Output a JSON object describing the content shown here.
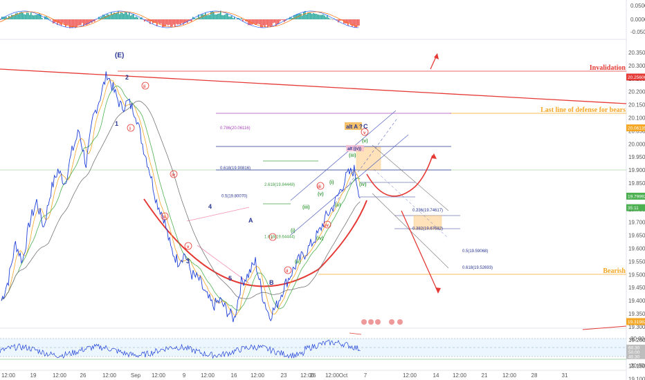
{
  "chart_data": {
    "type": "line",
    "price_axis_labels": [
      "20.35000",
      "20.30000",
      "20.25000",
      "20.20000",
      "20.15000",
      "20.10000",
      "20.05000",
      "20.00000",
      "19.95000",
      "19.90000",
      "19.85000",
      "19.80000",
      "19.75000",
      "19.70000",
      "19.65000",
      "19.60000",
      "19.55000",
      "19.50000",
      "19.45000",
      "19.40000",
      "19.35000",
      "19.30000",
      "19.25000",
      "19.20000",
      "19.15000",
      "19.10000"
    ],
    "macd_axis_labels": [
      "0.05000",
      "0.00000",
      "-0.05000"
    ],
    "rsi_axis_labels": [
      "80.00",
      "60.00",
      "50.00",
      "40.00",
      "20.00"
    ],
    "time_labels": [
      "12:00",
      "19",
      "12:00",
      "26",
      "12:00",
      "Sep",
      "12:00",
      "9",
      "12:00",
      "16",
      "12:00",
      "23",
      "12:00",
      "26",
      "12:00",
      "Oct",
      "7",
      "12:00",
      "14",
      "12:00",
      "21",
      "12:00",
      "28",
      "31"
    ],
    "price_tags": [
      {
        "text": "20.25606",
        "value": 20.25606,
        "color": "#e53935"
      },
      {
        "text": "20.06135",
        "value": 20.06135,
        "color": "#f5a623"
      },
      {
        "text": "19.79992",
        "value": 19.79992,
        "color": "#4caf50"
      },
      {
        "text": "35:11",
        "value": 19.777,
        "color": "#4caf50"
      },
      {
        "text": "19.31982",
        "value": 19.31982,
        "color": "#f5a623"
      }
    ],
    "rsi_tags": [
      {
        "text": "60.30",
        "value": 60.3,
        "color": "#bdbdbd"
      },
      {
        "text": "50.00",
        "value": 50,
        "color": "#bdbdbd"
      },
      {
        "text": "40.30",
        "value": 40.3,
        "color": "#bdbdbd"
      }
    ],
    "horizontal_lines": [
      {
        "label": "Invalidation",
        "value": 20.25606,
        "color": "#e53935"
      },
      {
        "label": "Last line of defense for bears",
        "value": 20.06135,
        "color": "#f5a623"
      },
      {
        "label": "Bearish",
        "value": 19.31982,
        "color": "#f5a623"
      }
    ],
    "fib_levels": [
      {
        "text": "0.786(20.06116)",
        "value": 20.06116,
        "color": "#ab47bc"
      },
      {
        "text": "0.618(19.90816)",
        "value": 19.90816,
        "color": "#283593"
      },
      {
        "text": "2.618(19.84448)",
        "value": 19.84448,
        "color": "#43a047"
      },
      {
        "text": "0.5(19.80070)",
        "value": 19.8007,
        "color": "#283593"
      },
      {
        "text": "1.618(19.64444)",
        "value": 19.64444,
        "color": "#43a047"
      },
      {
        "text": "0.236(19.74617)",
        "value": 19.74617,
        "color": "#283593"
      },
      {
        "text": "0.382(19.67682)",
        "value": 19.67682,
        "color": "#283593"
      },
      {
        "text": "0.5(19.59068)",
        "value": 19.59068,
        "color": "#283593"
      },
      {
        "text": "0.618(19.52693)",
        "value": 19.52693,
        "color": "#283593"
      }
    ],
    "wave_labels": [
      "(E)",
      "2",
      "1",
      "3",
      "4",
      "5",
      "A",
      "B",
      "C",
      "alt A ?",
      "(i)",
      "(ii)",
      "(iii)",
      "(iv)",
      "(v)",
      "i",
      "ii",
      "iii",
      "iv",
      "v",
      "alt ((v))"
    ],
    "price_series": [
      19.4,
      19.48,
      19.62,
      19.55,
      19.7,
      19.78,
      19.68,
      19.82,
      19.9,
      19.85,
      19.97,
      20.05,
      19.92,
      20.1,
      20.18,
      20.27,
      20.2,
      20.14,
      20.16,
      20.12,
      20.0,
      19.9,
      19.78,
      19.72,
      19.6,
      19.55,
      19.58,
      19.5,
      19.48,
      19.42,
      19.38,
      19.4,
      19.36,
      19.33,
      19.47,
      19.5,
      19.55,
      19.42,
      19.34,
      19.38,
      19.45,
      19.5,
      19.55,
      19.58,
      19.62,
      19.66,
      19.72,
      19.76,
      19.82,
      19.88,
      19.9,
      19.78
    ]
  }
}
